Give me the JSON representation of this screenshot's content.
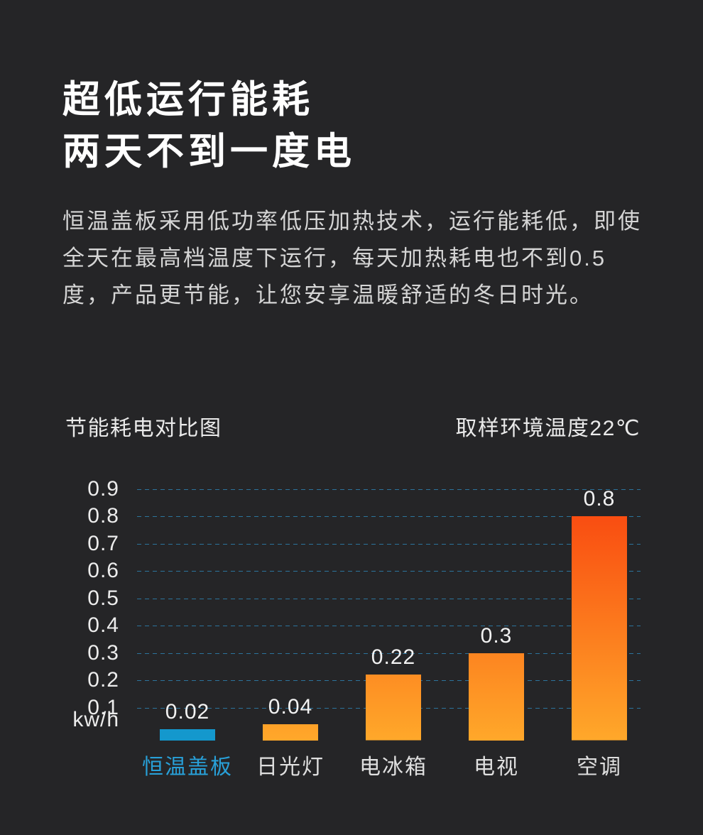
{
  "page_bg": "#252527",
  "headline": {
    "line1": "超低运行能耗",
    "line2": "两天不到一度电"
  },
  "paragraph": "恒温盖板采用低功率低压加热技术，运行能耗低，即使全天在最高档温度下运行，每天加热耗电也不到0.5度，产品更节能，让您安享温暖舒适的冬日时光。",
  "chart_header": {
    "title": "节能耗电对比图",
    "note": "取样环境温度22℃"
  },
  "chart_data": {
    "type": "bar",
    "title": "节能耗电对比图",
    "annotation": "取样环境温度22℃",
    "categories": [
      "恒温盖板",
      "日光灯",
      "电冰箱",
      "电视",
      "空调"
    ],
    "values": [
      0.02,
      0.04,
      0.22,
      0.3,
      0.8
    ],
    "value_labels": [
      "0.02",
      "0.04",
      "0.22",
      "0.3",
      "0.8"
    ],
    "unit_label": "kw/h",
    "ytick_labels": [
      "0.9",
      "0.8",
      "0.7",
      "0.6",
      "0.5",
      "0.4",
      "0.3",
      "0.2",
      "0.1"
    ],
    "ylim": [
      0,
      0.9
    ],
    "grid": "horizontal-dashed",
    "legend_position": "none",
    "highlight_index": 0,
    "colors": {
      "highlight_bar": "#1498cd",
      "highlight_label": "#28a0d8",
      "bar_gradient_top": "#f8420e",
      "bar_gradient_bottom": "#ffa82a",
      "gridline": "#2c749c",
      "axis_text": "#ececec",
      "value_text": "#f2f2f2",
      "category_text": "#dfdfdf"
    }
  }
}
